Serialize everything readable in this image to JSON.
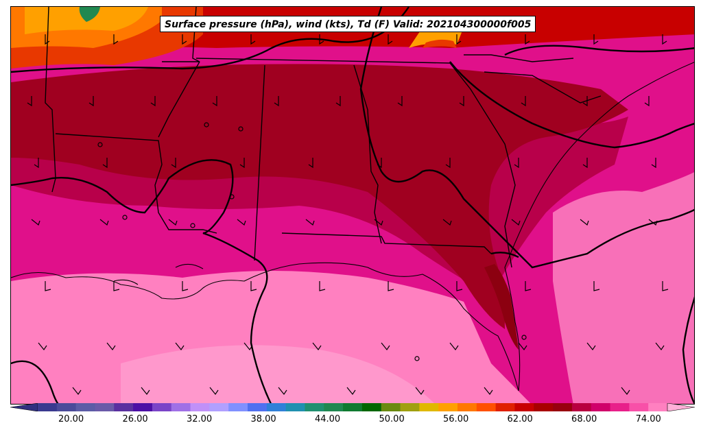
{
  "title": "Surface pressure (hPa), wind (kts), Td (F) Valid: 202104300000f005",
  "colorbar": {
    "colors": [
      "#3a3a8f",
      "#4b4b9a",
      "#5c5ca6",
      "#6a5aa8",
      "#5a30a0",
      "#4d10a6",
      "#7a44c8",
      "#a070e6",
      "#c090f8",
      "#b0a0ff",
      "#8090ff",
      "#5070f0",
      "#3080d8",
      "#2090b0",
      "#209070",
      "#208850",
      "#107a30",
      "#006600",
      "#6a8a10",
      "#a0a010",
      "#e0b800",
      "#ffa000",
      "#ff7800",
      "#ff5000",
      "#e02000",
      "#c80000",
      "#a80000",
      "#98000e",
      "#b80040",
      "#d0006a",
      "#e8208a",
      "#f850a8",
      "#ff80c0"
    ],
    "over_color": "#ffb0d8",
    "under_color": "#303080",
    "ticks": [
      {
        "label": "20.00",
        "value": 20
      },
      {
        "label": "26.00",
        "value": 26
      },
      {
        "label": "32.00",
        "value": 32
      },
      {
        "label": "38.00",
        "value": 38
      },
      {
        "label": "44.00",
        "value": 44
      },
      {
        "label": "50.00",
        "value": 50
      },
      {
        "label": "56.00",
        "value": 56
      },
      {
        "label": "62.00",
        "value": 62
      },
      {
        "label": "68.00",
        "value": 68
      },
      {
        "label": "74.00",
        "value": 74
      }
    ],
    "vmin": 17.33,
    "vmax": 76.67
  },
  "map_colors": {
    "gulf_light": "#ff90c8",
    "gulf_mid": "#f878b8",
    "coast_pink": "#ff70b8",
    "magenta": "#e0108a",
    "crimson": "#b8004a",
    "deep_red": "#a00020",
    "dark_red": "#8c0010",
    "red": "#c80000",
    "orange_red": "#e83800",
    "orange": "#ff7800",
    "amber": "#ffa000",
    "yellow": "#e0b800",
    "green": "#208850"
  }
}
